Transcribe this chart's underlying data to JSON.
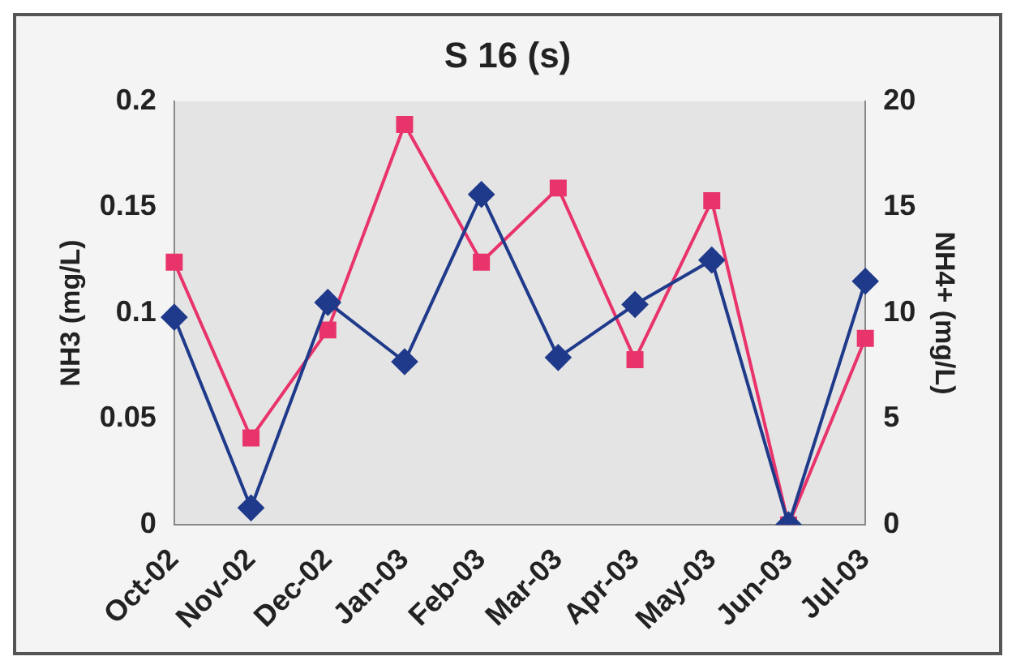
{
  "chart_data": {
    "type": "line",
    "title": "S 16 (s)",
    "ylabel": "NH3 (mg/L)",
    "y2label": "NH4+ (mg/L)",
    "categories": [
      "Oct-02",
      "Nov-02",
      "Dec-02",
      "Jan-03",
      "Feb-03",
      "Mar-03",
      "Apr-03",
      "May-03",
      "Jun-03",
      "Jul-03"
    ],
    "series": [
      {
        "color": "#1f3a8a",
        "marker": "diamond",
        "values": [
          0.098,
          0.008,
          0.105,
          0.077,
          0.156,
          0.079,
          0.104,
          0.125,
          0,
          0.115
        ]
      },
      {
        "color": "#e8336b",
        "marker": "square",
        "axis": "y2",
        "values": [
          12.4,
          4.1,
          9.2,
          18.9,
          12.4,
          15.9,
          7.8,
          15.3,
          0,
          8.8
        ]
      }
    ],
    "ylim": [
      0,
      0.2
    ],
    "yticks": [
      0,
      0.05,
      0.1,
      0.15,
      0.2
    ],
    "y2lim": [
      0,
      20
    ],
    "y2ticks": [
      0,
      5,
      10,
      15,
      20
    ],
    "grid": false,
    "legend": false
  }
}
